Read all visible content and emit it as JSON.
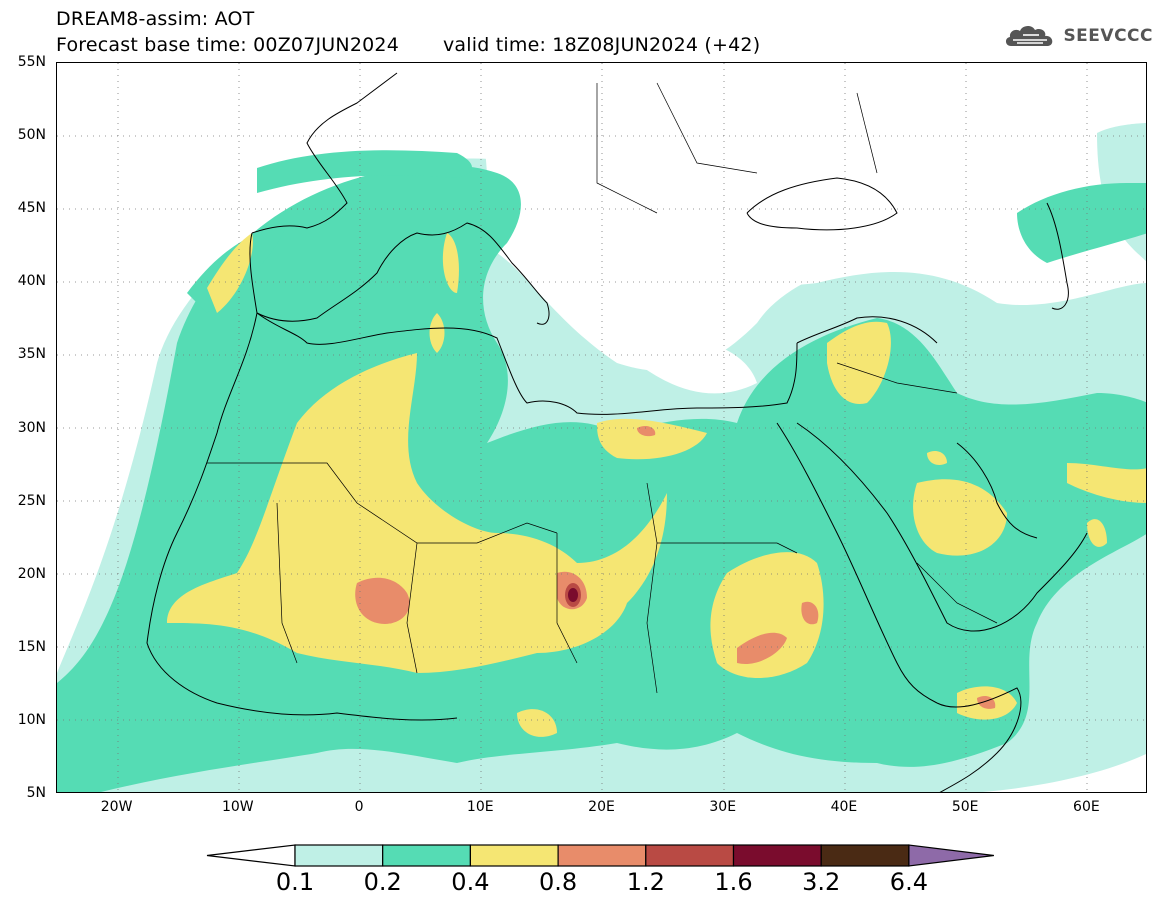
{
  "header": {
    "title_line1": "DREAM8-assim: AOT",
    "base_time": "Forecast base time: 00Z07JUN2024",
    "valid_time": "valid time: 18Z08JUN2024 (+42)"
  },
  "logo": {
    "icon": "cloud-icon",
    "text": "SEEVCCC"
  },
  "map": {
    "lat_labels": [
      "55N",
      "50N",
      "45N",
      "40N",
      "35N",
      "30N",
      "25N",
      "20N",
      "15N",
      "10N",
      "5N"
    ],
    "lon_labels": [
      "20W",
      "10W",
      "0",
      "10E",
      "20E",
      "30E",
      "40E",
      "50E",
      "60E"
    ],
    "lat_range": [
      5,
      55
    ],
    "lon_range": [
      -25,
      65
    ],
    "grid": "dotted",
    "coastlines": true,
    "borders": true
  },
  "colorbar": {
    "labels": [
      "0.1",
      "0.2",
      "0.4",
      "0.8",
      "1.2",
      "1.6",
      "3.2",
      "6.4"
    ],
    "colors": [
      "#ffffff",
      "#bff0e6",
      "#55dcb4",
      "#f5e673",
      "#e88c6a",
      "#b94a44",
      "#7a0c2d",
      "#4a2a14",
      "#8e6aa8"
    ],
    "extend": "both"
  }
}
